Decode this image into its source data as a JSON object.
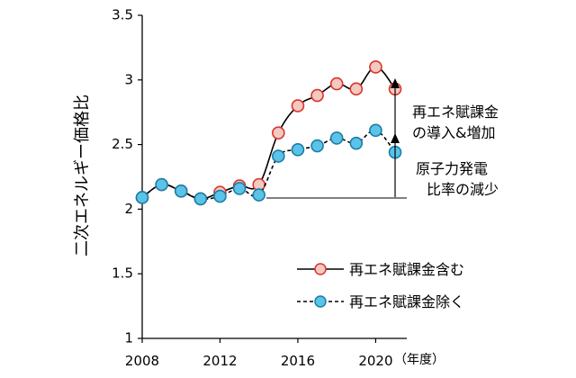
{
  "chart_data": {
    "type": "line",
    "title": "",
    "xlabel": "",
    "ylabel": "二次エネルギー価格比",
    "x_unit_label": "（年度）",
    "xlim": [
      2008,
      2021.6
    ],
    "ylim": [
      1,
      3.5
    ],
    "xticks": [
      2008,
      2012,
      2016,
      2020
    ],
    "yticks": [
      1,
      1.5,
      2,
      2.5,
      3,
      3.5
    ],
    "xtick_labels": [
      "2008",
      "2012",
      "2016",
      "2020"
    ],
    "ytick_labels": [
      "1",
      "1.5",
      "2",
      "2.5",
      "3",
      "3.5"
    ],
    "grid": false,
    "legend_position": "bottom-right",
    "series": [
      {
        "name": "再エネ賦課金含む",
        "line_style": "solid",
        "marker_fill": "#f4c9c0",
        "marker_edge": "#d9342b",
        "x": [
          2008,
          2009,
          2010,
          2011,
          2012,
          2013,
          2014,
          2015,
          2016,
          2017,
          2018,
          2019,
          2020,
          2021
        ],
        "values": [
          2.09,
          2.19,
          2.14,
          2.08,
          2.13,
          2.18,
          2.19,
          2.59,
          2.8,
          2.88,
          2.97,
          2.93,
          3.1,
          2.93
        ]
      },
      {
        "name": "再エネ賦課金除く",
        "line_style": "dashed",
        "marker_fill": "#5bc2e8",
        "marker_edge": "#1b7ea8",
        "x": [
          2008,
          2009,
          2010,
          2011,
          2012,
          2013,
          2014,
          2015,
          2016,
          2017,
          2018,
          2019,
          2020,
          2021
        ],
        "values": [
          2.09,
          2.19,
          2.14,
          2.08,
          2.1,
          2.16,
          2.11,
          2.41,
          2.46,
          2.49,
          2.55,
          2.51,
          2.61,
          2.44
        ]
      }
    ],
    "annotations": [
      {
        "id": "renewable-levy",
        "lines": [
          "再エネ賦課金",
          "の導入&増加"
        ]
      },
      {
        "id": "nuclear-ratio",
        "lines": [
          "原子力発電",
          "比率の減少"
        ]
      }
    ]
  }
}
